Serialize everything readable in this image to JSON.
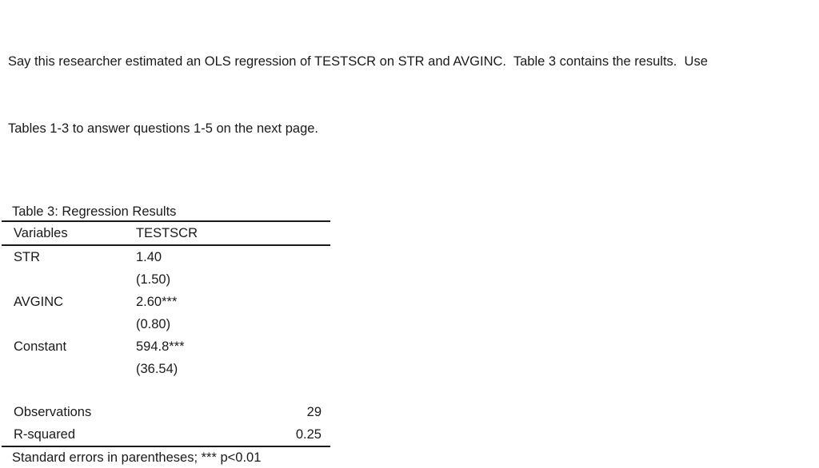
{
  "colors": {
    "background": "#ffffff",
    "text": "#1a1a1a",
    "rule": "#1a1a1a"
  },
  "intro": {
    "line1": "Say this researcher estimated an OLS regression of TESTSCR on STR and AVGINC.  Table 3 contains the results.  Use",
    "line2": "Tables 1-3 to answer questions 1-5 on the next page."
  },
  "table": {
    "title": "Table 3: Regression Results",
    "header": {
      "col1": "Variables",
      "col2": "TESTSCR"
    },
    "coefficients": [
      {
        "variable": "STR",
        "estimate": "1.40",
        "std_error": "(1.50)"
      },
      {
        "variable": "AVGINC",
        "estimate": "2.60***",
        "std_error": "(0.80)"
      },
      {
        "variable": "Constant",
        "estimate": "594.8***",
        "std_error": "(36.54)"
      }
    ],
    "statistics": [
      {
        "label": "Observations",
        "value": "29"
      },
      {
        "label": "R-squared",
        "value": "0.25"
      }
    ],
    "footnote": "Standard errors in parentheses; *** p<0.01"
  }
}
